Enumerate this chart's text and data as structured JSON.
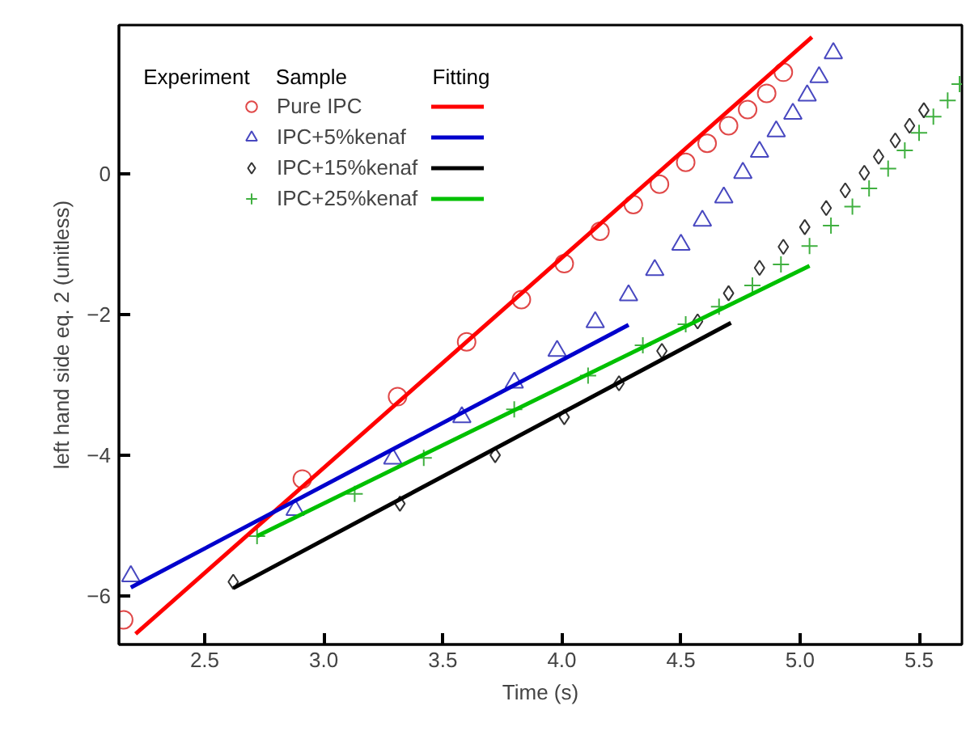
{
  "chart_data": {
    "type": "scatter",
    "xlabel": "Time (s)",
    "ylabel": "left hand side eq. 2 (unitless)",
    "legend_title": "Sample",
    "annotations": [
      "Experiment",
      "Fitting"
    ],
    "legend": "top left",
    "grid": false,
    "xlim": [
      2.14,
      5.68
    ],
    "ylim": [
      -6.69,
      2.11
    ],
    "xticks": [
      2.5,
      {
        "value": 3,
        "label": "3.0"
      },
      3.5,
      {
        "value": 4,
        "label": "4.0"
      },
      4.5,
      {
        "value": 5,
        "label": "5.0"
      },
      5.5
    ],
    "yticks": [
      -6,
      -4,
      -2,
      0
    ],
    "series": [
      {
        "name": "Pure IPC",
        "type": "scatter",
        "marker": "circle",
        "color": "#e04848",
        "x": [
          2.16,
          2.91,
          3.31,
          3.6,
          3.83,
          4.01,
          4.16,
          4.3,
          4.41,
          4.52,
          4.61,
          4.7,
          4.78,
          4.86,
          4.93
        ],
        "values": [
          -6.34,
          -4.34,
          -3.17,
          -2.39,
          -1.79,
          -1.28,
          -0.82,
          -0.44,
          -0.15,
          0.16,
          0.43,
          0.68,
          0.91,
          1.14,
          1.44
        ]
      },
      {
        "name": "IPC+5%kenaf",
        "type": "scatter",
        "marker": "triangle",
        "color": "#4848c0",
        "x": [
          2.19,
          2.88,
          3.29,
          3.58,
          3.8,
          3.98,
          4.14,
          4.28,
          4.39,
          4.5,
          4.59,
          4.68,
          4.76,
          4.83,
          4.9,
          4.97,
          5.03,
          5.08,
          5.14
        ],
        "values": [
          -5.72,
          -4.78,
          -4.05,
          -3.46,
          -2.97,
          -2.52,
          -2.11,
          -1.73,
          -1.37,
          -1.01,
          -0.67,
          -0.34,
          0.01,
          0.31,
          0.6,
          0.85,
          1.11,
          1.37,
          1.71
        ]
      },
      {
        "name": "IPC+15%kenaf",
        "type": "scatter",
        "marker": "diamond",
        "color": "#333333",
        "x": [
          2.62,
          3.32,
          3.72,
          4.01,
          4.24,
          4.42,
          4.57,
          4.7,
          4.83,
          4.93,
          5.02,
          5.11,
          5.19,
          5.27,
          5.33,
          5.4,
          5.46,
          5.52
        ],
        "values": [
          -5.8,
          -4.69,
          -4.0,
          -3.46,
          -2.98,
          -2.52,
          -2.1,
          -1.7,
          -1.34,
          -1.04,
          -0.76,
          -0.49,
          -0.24,
          0.01,
          0.24,
          0.47,
          0.68,
          0.9
        ]
      },
      {
        "name": "IPC+25%kenaf",
        "type": "scatter",
        "marker": "cross",
        "color": "#40b040",
        "x": [
          2.72,
          3.13,
          3.42,
          3.8,
          4.11,
          4.34,
          4.52,
          4.66,
          4.8,
          4.92,
          5.04,
          5.13,
          5.22,
          5.29,
          5.37,
          5.44,
          5.5,
          5.56,
          5.62,
          5.67
        ],
        "values": [
          -5.15,
          -4.55,
          -4.04,
          -3.35,
          -2.87,
          -2.44,
          -2.14,
          -1.89,
          -1.59,
          -1.29,
          -1.03,
          -0.74,
          -0.47,
          -0.21,
          0.07,
          0.33,
          0.58,
          0.81,
          1.04,
          1.27
        ]
      },
      {
        "type": "line",
        "color": "#ff0000",
        "x": [
          2.21,
          5.05
        ],
        "values": [
          -6.54,
          1.94
        ]
      },
      {
        "type": "line",
        "color": "#0000cc",
        "x": [
          2.19,
          4.28
        ],
        "values": [
          -5.88,
          -2.15
        ]
      },
      {
        "type": "line",
        "color": "#000000",
        "x": [
          2.62,
          4.71
        ],
        "values": [
          -5.89,
          -2.12
        ]
      },
      {
        "type": "line",
        "color": "#00c000",
        "x": [
          2.72,
          5.04
        ],
        "values": [
          -5.15,
          -1.31
        ]
      }
    ]
  }
}
